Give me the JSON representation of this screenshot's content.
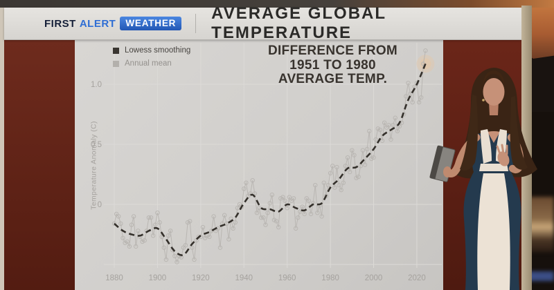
{
  "broadcast": {
    "brand": {
      "first": "FIRST",
      "alert": "ALERT",
      "weather": "WEATHER"
    },
    "headline": "AVERAGE GLOBAL TEMPERATURE"
  },
  "colors": {
    "accent_blue": "#2f6ed4",
    "wall_maroon": "#5e2014",
    "board_gray": "#d3d1ce",
    "highlight_tan": "#e0c9ae",
    "lowess_line": "#34302b",
    "annual_line": "#b9b6b2"
  },
  "chart_data": {
    "type": "line",
    "title": "DIFFERENCE FROM 1951 TO 1980 AVERAGE TEMP.",
    "title_lines": [
      "DIFFERENCE FROM",
      "1951 TO 1980",
      "AVERAGE TEMP."
    ],
    "ylabel": "Temperature Anomaly (C)",
    "xlabel": "",
    "xlim": [
      1877,
      2027
    ],
    "ylim": [
      -0.65,
      1.35
    ],
    "xticks": [
      1880,
      1900,
      1920,
      1940,
      1960,
      1980,
      2000,
      2020
    ],
    "yticks": [
      {
        "value": 1.0,
        "label": "1.0"
      },
      {
        "value": 0.5,
        "label": "0.5"
      },
      {
        "value": 0.0,
        "label": "0"
      }
    ],
    "ygrid": [
      1.0,
      0.5,
      0.0,
      -0.5
    ],
    "grid": true,
    "legend_position": "top-left",
    "legend": [
      {
        "label": "Lowess smoothing",
        "swatch": "#3a3631"
      },
      {
        "label": "Annual mean",
        "swatch": "#b3b0ac"
      }
    ],
    "highlight": {
      "year": 2024,
      "value": 1.17,
      "color": "#e0c9ae"
    },
    "series": [
      {
        "name": "Annual mean",
        "type": "scatter-line",
        "color": "#b9b6b2",
        "x_start": 1880,
        "x_step": 1,
        "values": [
          -0.16,
          -0.08,
          -0.1,
          -0.16,
          -0.28,
          -0.32,
          -0.31,
          -0.35,
          -0.17,
          -0.1,
          -0.35,
          -0.22,
          -0.27,
          -0.31,
          -0.3,
          -0.22,
          -0.11,
          -0.11,
          -0.26,
          -0.17,
          -0.07,
          -0.15,
          -0.27,
          -0.36,
          -0.46,
          -0.26,
          -0.22,
          -0.38,
          -0.43,
          -0.48,
          -0.43,
          -0.44,
          -0.36,
          -0.34,
          -0.15,
          -0.14,
          -0.36,
          -0.46,
          -0.3,
          -0.27,
          -0.27,
          -0.19,
          -0.28,
          -0.26,
          -0.27,
          -0.22,
          -0.1,
          -0.22,
          -0.2,
          -0.36,
          -0.16,
          -0.09,
          -0.16,
          -0.29,
          -0.12,
          -0.2,
          -0.15,
          -0.03,
          0.0,
          -0.02,
          0.13,
          0.18,
          0.07,
          0.09,
          0.2,
          0.09,
          -0.07,
          -0.03,
          -0.11,
          -0.11,
          -0.17,
          -0.07,
          0.01,
          0.08,
          -0.13,
          -0.14,
          -0.19,
          0.05,
          0.06,
          0.03,
          -0.03,
          0.06,
          0.03,
          0.05,
          -0.2,
          -0.11,
          -0.06,
          -0.02,
          -0.08,
          0.05,
          0.03,
          -0.08,
          0.01,
          0.16,
          -0.07,
          -0.01,
          -0.1,
          0.18,
          0.07,
          0.16,
          0.26,
          0.32,
          0.14,
          0.31,
          0.16,
          0.12,
          0.18,
          0.32,
          0.39,
          0.27,
          0.45,
          0.41,
          0.22,
          0.23,
          0.32,
          0.45,
          0.33,
          0.46,
          0.61,
          0.38,
          0.39,
          0.54,
          0.63,
          0.62,
          0.53,
          0.68,
          0.64,
          0.66,
          0.54,
          0.66,
          0.72,
          0.61,
          0.65,
          0.68,
          0.75,
          0.9,
          1.01,
          0.92,
          0.85,
          0.98,
          1.01,
          0.85,
          0.89,
          1.17,
          1.28
        ]
      },
      {
        "name": "Lowess smoothing",
        "type": "line-dashed",
        "color": "#34302b",
        "x": [
          1880,
          1884,
          1888,
          1892,
          1896,
          1900,
          1904,
          1908,
          1912,
          1916,
          1920,
          1924,
          1928,
          1932,
          1936,
          1940,
          1944,
          1948,
          1952,
          1956,
          1960,
          1964,
          1968,
          1972,
          1976,
          1980,
          1984,
          1988,
          1992,
          1996,
          2000,
          2004,
          2008,
          2012,
          2016,
          2020,
          2024
        ],
        "values": [
          -0.16,
          -0.22,
          -0.25,
          -0.26,
          -0.22,
          -0.2,
          -0.29,
          -0.39,
          -0.42,
          -0.33,
          -0.26,
          -0.23,
          -0.19,
          -0.16,
          -0.11,
          0.01,
          0.08,
          -0.03,
          -0.04,
          -0.06,
          0.0,
          -0.03,
          -0.05,
          0.0,
          0.01,
          0.14,
          0.21,
          0.3,
          0.31,
          0.38,
          0.46,
          0.57,
          0.62,
          0.68,
          0.87,
          1.0,
          1.17
        ]
      }
    ]
  }
}
